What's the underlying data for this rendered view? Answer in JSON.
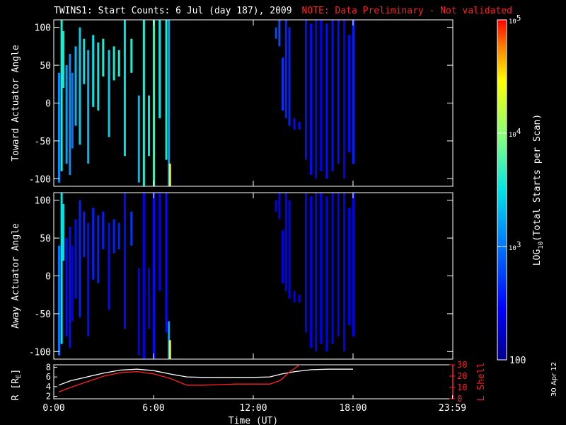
{
  "title": {
    "main": "TWINS1: Start Counts:  6 Jul (day 187), 2009",
    "note": "NOTE: Data Preliminary - Not validated"
  },
  "datestamp": "30 Apr 12",
  "colors": {
    "background": "#000000",
    "axes": "#ffffff",
    "note": "#ff2020",
    "lshell": "#ff2020",
    "radius": "#ffffff"
  },
  "chart_data": [
    {
      "type": "heatmap",
      "name": "toward",
      "ylabel": "Toward Actuator Angle",
      "ylim": [
        -110,
        110
      ],
      "yticks": [
        "100",
        "50",
        "0",
        "-50",
        "-100"
      ],
      "ytick_values": [
        100,
        50,
        0,
        -50,
        -100
      ],
      "xlim": [
        0,
        24
      ],
      "x_unit": "hours UT",
      "scan_columns": [
        {
          "t": 0.3,
          "y0": -105,
          "y1": 40,
          "log": 3.1
        },
        {
          "t": 0.45,
          "y0": -90,
          "y1": 110,
          "log": 3.6
        },
        {
          "t": 0.55,
          "y0": 20,
          "y1": 95,
          "log": 3.6
        },
        {
          "t": 0.75,
          "y0": -80,
          "y1": 50,
          "log": 3.2
        },
        {
          "t": 0.95,
          "y0": -95,
          "y1": 65,
          "log": 3.1
        },
        {
          "t": 1.1,
          "y0": -60,
          "y1": 40,
          "log": 3.0
        },
        {
          "t": 1.3,
          "y0": -30,
          "y1": 75,
          "log": 3.3
        },
        {
          "t": 1.55,
          "y0": -55,
          "y1": 100,
          "log": 3.4
        },
        {
          "t": 1.8,
          "y0": 25,
          "y1": 85,
          "log": 3.5
        },
        {
          "t": 2.05,
          "y0": -80,
          "y1": 70,
          "log": 3.3
        },
        {
          "t": 2.35,
          "y0": -5,
          "y1": 90,
          "log": 3.5
        },
        {
          "t": 2.65,
          "y0": -10,
          "y1": 80,
          "log": 3.5
        },
        {
          "t": 2.95,
          "y0": 35,
          "y1": 85,
          "log": 3.6
        },
        {
          "t": 3.3,
          "y0": -45,
          "y1": 70,
          "log": 3.4
        },
        {
          "t": 3.6,
          "y0": 30,
          "y1": 75,
          "log": 3.6
        },
        {
          "t": 3.9,
          "y0": 35,
          "y1": 70,
          "log": 3.6
        },
        {
          "t": 4.25,
          "y0": -70,
          "y1": 110,
          "log": 3.5
        },
        {
          "t": 4.65,
          "y0": 40,
          "y1": 85,
          "log": 3.6
        },
        {
          "t": 5.1,
          "y0": -105,
          "y1": 10,
          "log": 3.3
        },
        {
          "t": 5.4,
          "y0": -110,
          "y1": 110,
          "log": 3.6
        },
        {
          "t": 5.7,
          "y0": -70,
          "y1": 10,
          "log": 3.5
        },
        {
          "t": 6.0,
          "y0": -110,
          "y1": 110,
          "log": 3.7
        },
        {
          "t": 6.35,
          "y0": -20,
          "y1": 110,
          "log": 3.5
        },
        {
          "t": 6.75,
          "y0": -75,
          "y1": 110,
          "log": 3.6
        },
        {
          "t": 6.9,
          "y0": -110,
          "y1": 110,
          "log": 3.2
        },
        {
          "t": 6.97,
          "y0": -110,
          "y1": -80,
          "log": 4.5
        },
        {
          "t": 13.35,
          "y0": 85,
          "y1": 100,
          "log": 2.8
        },
        {
          "t": 13.55,
          "y0": 75,
          "y1": 110,
          "log": 2.8
        },
        {
          "t": 13.75,
          "y0": -10,
          "y1": 60,
          "log": 2.7
        },
        {
          "t": 13.95,
          "y0": -20,
          "y1": 110,
          "log": 2.6
        },
        {
          "t": 14.15,
          "y0": -30,
          "y1": 100,
          "log": 2.6
        },
        {
          "t": 14.45,
          "y0": -35,
          "y1": -20,
          "log": 2.5
        },
        {
          "t": 14.75,
          "y0": -35,
          "y1": -25,
          "log": 2.5
        },
        {
          "t": 15.15,
          "y0": -75,
          "y1": 110,
          "log": 2.5
        },
        {
          "t": 15.45,
          "y0": -95,
          "y1": 105,
          "log": 2.5
        },
        {
          "t": 15.75,
          "y0": -100,
          "y1": 110,
          "log": 2.4
        },
        {
          "t": 16.05,
          "y0": -90,
          "y1": 110,
          "log": 2.4
        },
        {
          "t": 16.4,
          "y0": -100,
          "y1": 105,
          "log": 2.5
        },
        {
          "t": 16.75,
          "y0": -90,
          "y1": 110,
          "log": 2.5
        },
        {
          "t": 17.1,
          "y0": -80,
          "y1": 110,
          "log": 2.5
        },
        {
          "t": 17.45,
          "y0": -100,
          "y1": 110,
          "log": 2.4
        },
        {
          "t": 17.75,
          "y0": -65,
          "y1": 90,
          "log": 2.5
        },
        {
          "t": 18.0,
          "y0": -80,
          "y1": 110,
          "log": 2.6
        }
      ]
    },
    {
      "type": "heatmap",
      "name": "away",
      "ylabel": "Away Actuator Angle",
      "ylim": [
        -110,
        110
      ],
      "yticks": [
        "100",
        "50",
        "0",
        "-50",
        "-100"
      ],
      "ytick_values": [
        100,
        50,
        0,
        -50,
        -100
      ],
      "xlim": [
        0,
        24
      ],
      "x_unit": "hours UT",
      "scan_columns": [
        {
          "t": 0.3,
          "y0": -105,
          "y1": 40,
          "log": 3.0
        },
        {
          "t": 0.45,
          "y0": -90,
          "y1": 110,
          "log": 3.5
        },
        {
          "t": 0.55,
          "y0": 20,
          "y1": 95,
          "log": 3.5
        },
        {
          "t": 0.75,
          "y0": -80,
          "y1": 50,
          "log": 2.5
        },
        {
          "t": 0.95,
          "y0": -95,
          "y1": 65,
          "log": 2.5
        },
        {
          "t": 1.1,
          "y0": -60,
          "y1": 40,
          "log": 2.4
        },
        {
          "t": 1.3,
          "y0": -30,
          "y1": 75,
          "log": 2.5
        },
        {
          "t": 1.55,
          "y0": -55,
          "y1": 100,
          "log": 2.6
        },
        {
          "t": 1.8,
          "y0": 25,
          "y1": 85,
          "log": 2.6
        },
        {
          "t": 2.05,
          "y0": -80,
          "y1": 70,
          "log": 2.5
        },
        {
          "t": 2.35,
          "y0": -5,
          "y1": 90,
          "log": 2.6
        },
        {
          "t": 2.65,
          "y0": -10,
          "y1": 80,
          "log": 2.6
        },
        {
          "t": 2.95,
          "y0": 35,
          "y1": 85,
          "log": 2.6
        },
        {
          "t": 3.3,
          "y0": -45,
          "y1": 70,
          "log": 2.5
        },
        {
          "t": 3.6,
          "y0": 30,
          "y1": 75,
          "log": 2.6
        },
        {
          "t": 3.9,
          "y0": 35,
          "y1": 70,
          "log": 2.6
        },
        {
          "t": 4.25,
          "y0": -70,
          "y1": 110,
          "log": 2.5
        },
        {
          "t": 4.65,
          "y0": 40,
          "y1": 85,
          "log": 2.7
        },
        {
          "t": 5.1,
          "y0": -105,
          "y1": 10,
          "log": 2.4
        },
        {
          "t": 5.4,
          "y0": -110,
          "y1": 110,
          "log": 2.4
        },
        {
          "t": 5.7,
          "y0": -70,
          "y1": 10,
          "log": 2.4
        },
        {
          "t": 6.0,
          "y0": -110,
          "y1": 110,
          "log": 2.5
        },
        {
          "t": 6.35,
          "y0": -20,
          "y1": 110,
          "log": 2.4
        },
        {
          "t": 6.75,
          "y0": -75,
          "y1": 110,
          "log": 2.5
        },
        {
          "t": 6.9,
          "y0": -110,
          "y1": -60,
          "log": 3.2
        },
        {
          "t": 6.97,
          "y0": -110,
          "y1": -85,
          "log": 4.5
        },
        {
          "t": 13.35,
          "y0": 85,
          "y1": 100,
          "log": 2.4
        },
        {
          "t": 13.55,
          "y0": 75,
          "y1": 110,
          "log": 2.4
        },
        {
          "t": 13.75,
          "y0": -10,
          "y1": 60,
          "log": 2.4
        },
        {
          "t": 13.95,
          "y0": -20,
          "y1": 110,
          "log": 2.4
        },
        {
          "t": 14.15,
          "y0": -30,
          "y1": 100,
          "log": 2.4
        },
        {
          "t": 14.45,
          "y0": -35,
          "y1": -20,
          "log": 2.4
        },
        {
          "t": 14.75,
          "y0": -35,
          "y1": -25,
          "log": 2.4
        },
        {
          "t": 15.15,
          "y0": -75,
          "y1": 110,
          "log": 2.4
        },
        {
          "t": 15.45,
          "y0": -95,
          "y1": 105,
          "log": 2.4
        },
        {
          "t": 15.75,
          "y0": -100,
          "y1": 110,
          "log": 2.4
        },
        {
          "t": 16.05,
          "y0": -90,
          "y1": 110,
          "log": 2.4
        },
        {
          "t": 16.4,
          "y0": -100,
          "y1": 105,
          "log": 2.4
        },
        {
          "t": 16.75,
          "y0": -90,
          "y1": 110,
          "log": 2.4
        },
        {
          "t": 17.1,
          "y0": -80,
          "y1": 110,
          "log": 2.4
        },
        {
          "t": 17.45,
          "y0": -100,
          "y1": 110,
          "log": 2.4
        },
        {
          "t": 17.75,
          "y0": -65,
          "y1": 90,
          "log": 2.4
        },
        {
          "t": 18.0,
          "y0": -80,
          "y1": 110,
          "log": 2.4
        }
      ]
    },
    {
      "type": "line",
      "name": "orbit",
      "ylabel_left": "R [R",
      "ylabel_left_sub": "E",
      "ylabel_left_close": "]",
      "ylabel_right": "L Shell",
      "yticks_left": [
        "8",
        "6",
        "4",
        "2"
      ],
      "ytick_left_values": [
        8,
        6,
        4,
        2
      ],
      "ylim_left": [
        1.5,
        8.5
      ],
      "yticks_right": [
        "30",
        "20",
        "10",
        "0"
      ],
      "ytick_right_values": [
        30,
        20,
        10,
        0
      ],
      "ylim_right": [
        0,
        30
      ],
      "xlim": [
        0,
        24
      ],
      "xticks": [
        "0:00",
        "6:00",
        "12:00",
        "18:00",
        "23:59"
      ],
      "xtick_values": [
        0,
        6,
        12,
        18,
        23.98
      ],
      "xlabel": "Time (UT)",
      "series": [
        {
          "axis": "left",
          "color": "#ffffff",
          "x": [
            0.3,
            1.0,
            2.0,
            3.0,
            4.0,
            5.0,
            6.0,
            7.0,
            8.0,
            9.0,
            10.0,
            11.0,
            12.0,
            13.0,
            13.7,
            14.5,
            15.5,
            16.5,
            17.5,
            18.0
          ],
          "y": [
            4.3,
            5.2,
            6.0,
            6.8,
            7.4,
            7.6,
            7.3,
            6.6,
            6.0,
            5.9,
            5.9,
            5.9,
            5.9,
            6.0,
            6.6,
            7.1,
            7.5,
            7.6,
            7.6,
            7.6
          ]
        },
        {
          "axis": "right",
          "color": "#ff2020",
          "x": [
            0.3,
            1.0,
            2.0,
            3.0,
            4.0,
            5.0,
            6.0,
            7.0,
            8.0,
            9.0,
            10.0,
            11.0,
            12.0,
            13.0,
            13.6,
            14.2,
            14.8
          ],
          "y": [
            6,
            10,
            15,
            20,
            23,
            24,
            22,
            18,
            12,
            12,
            12.5,
            13,
            13,
            13,
            16,
            24,
            32
          ]
        }
      ]
    }
  ],
  "colorbar": {
    "label_main": "LOG",
    "label_sub": "10",
    "label_rest": "(Total Starts per Scan)",
    "log_range": [
      2,
      5
    ],
    "ticks": [
      {
        "log": 5,
        "base": "10",
        "exp": "5"
      },
      {
        "log": 4,
        "base": "10",
        "exp": "4"
      },
      {
        "log": 3,
        "base": "10",
        "exp": "3"
      },
      {
        "log": 2,
        "text": "100"
      }
    ]
  }
}
